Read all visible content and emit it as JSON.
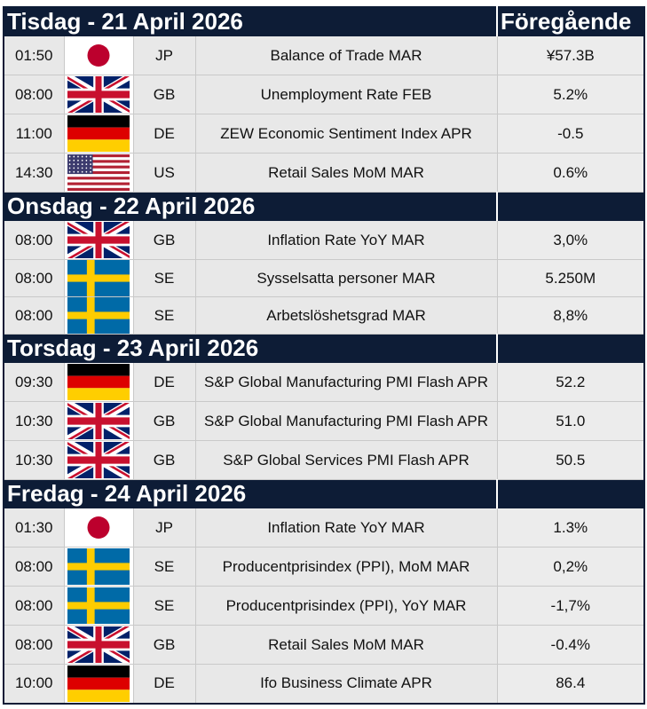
{
  "header": {
    "previous_label": "Föregående"
  },
  "days": [
    {
      "title": "Tisdag - 21 April 2026",
      "events": [
        {
          "time": "01:50",
          "flag": "japan-flag-icon",
          "country": "JP",
          "event": "Balance of Trade MAR",
          "previous": "¥57.3B"
        },
        {
          "time": "08:00",
          "flag": "uk-flag-icon",
          "country": "GB",
          "event": "Unemployment Rate FEB",
          "previous": "5.2%"
        },
        {
          "time": "11:00",
          "flag": "germany-flag-icon",
          "country": "DE",
          "event": "ZEW Economic Sentiment Index APR",
          "previous": "-0.5"
        },
        {
          "time": "14:30",
          "flag": "usa-flag-icon",
          "country": "US",
          "event": "Retail Sales MoM MAR",
          "previous": "0.6%"
        }
      ]
    },
    {
      "title": "Onsdag - 22 April 2026",
      "events": [
        {
          "time": "08:00",
          "flag": "uk-flag-icon",
          "country": "GB",
          "event": "Inflation Rate YoY MAR",
          "previous": "3,0%"
        },
        {
          "time": "08:00",
          "flag": "sweden-flag-icon",
          "country": "SE",
          "event": "Sysselsatta personer MAR",
          "previous": "5.250M"
        },
        {
          "time": "08:00",
          "flag": "sweden-flag-icon",
          "country": "SE",
          "event": "Arbetslöshetsgrad MAR",
          "previous": "8,8%"
        }
      ]
    },
    {
      "title": "Torsdag - 23 April 2026",
      "events": [
        {
          "time": "09:30",
          "flag": "germany-flag-icon",
          "country": "DE",
          "event": "S&P Global Manufacturing PMI Flash APR",
          "previous": "52.2"
        },
        {
          "time": "10:30",
          "flag": "uk-flag-icon",
          "country": "GB",
          "event": "S&P Global Manufacturing PMI Flash APR",
          "previous": "51.0"
        },
        {
          "time": "10:30",
          "flag": "uk-flag-icon",
          "country": "GB",
          "event": "S&P Global Services PMI Flash APR",
          "previous": "50.5"
        }
      ]
    },
    {
      "title": "Fredag - 24 April 2026",
      "events": [
        {
          "time": "01:30",
          "flag": "japan-flag-icon",
          "country": "JP",
          "event": "Inflation Rate YoY MAR",
          "previous": "1.3%"
        },
        {
          "time": "08:00",
          "flag": "sweden-flag-icon",
          "country": "SE",
          "event": "Producentprisindex (PPI), MoM MAR",
          "previous": "0,2%"
        },
        {
          "time": "08:00",
          "flag": "sweden-flag-icon",
          "country": "SE",
          "event": "Producentprisindex (PPI), YoY MAR",
          "previous": "-1,7%"
        },
        {
          "time": "08:00",
          "flag": "uk-flag-icon",
          "country": "GB",
          "event": "Retail Sales MoM MAR",
          "previous": "-0.4%"
        },
        {
          "time": "10:00",
          "flag": "germany-flag-icon",
          "country": "DE",
          "event": "Ifo Business Climate APR",
          "previous": "86.4"
        }
      ]
    }
  ]
}
